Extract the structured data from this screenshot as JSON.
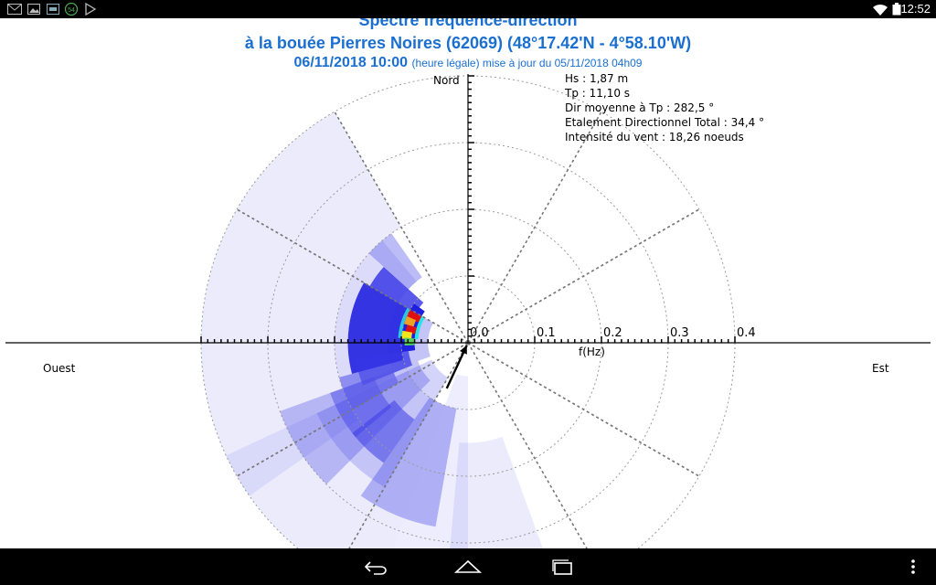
{
  "status_bar": {
    "time": "12:52",
    "notification_icons": [
      "gmail-icon",
      "gallery-icon",
      "app-notification-icon",
      "counter-badge-icon",
      "play-store-icon"
    ],
    "counter_badge": "54",
    "system_icons": [
      "wifi-icon",
      "battery-icon"
    ]
  },
  "header": {
    "title_line1": "Spectre fréquence-direction",
    "title_line2": "à la bouée Pierres Noires (62069) (48°17.42'N - 4°58.10'W)",
    "datetime": "06/11/2018 10:00",
    "datetime_note": "(heure légale) mise à jour du 05/11/2018 04h09"
  },
  "info": {
    "hs": "Hs : 1,87 m",
    "tp": "Tp : 11,10 s",
    "dir_mean": "Dir moyenne à Tp : 282,5 °",
    "spread": "Etalement Directionnel Total : 34,4 °",
    "wind": "Intensité du vent : 18,26 noeuds"
  },
  "compass": {
    "north": "Nord",
    "west": "Ouest",
    "east": "Est"
  },
  "axis": {
    "label": "f(Hz)",
    "ticks": [
      "0.0",
      "0.1",
      "0.2",
      "0.3",
      "0.4"
    ]
  },
  "chart_data": {
    "type": "heatmap",
    "projection": "polar",
    "radial_axis": {
      "label": "f(Hz)",
      "range": [
        0,
        0.4
      ],
      "ticks": [
        0.0,
        0.1,
        0.2,
        0.3,
        0.4
      ]
    },
    "directions": [
      "Nord",
      "Est",
      "Ouest"
    ],
    "colors": {
      "low": "#e9e9fb",
      "mid": "#1f1fe0",
      "cyan": "#25e6e6",
      "green": "#55d455",
      "yellow": "#f2e61e",
      "orange": "#f0a020",
      "peak": "#e01010"
    },
    "cells": [
      {
        "dir_deg": 296,
        "f_from": 0.08,
        "f_to": 0.1,
        "level": 0.95
      },
      {
        "dir_deg": 290,
        "f_from": 0.085,
        "f_to": 0.1,
        "level": 0.85
      },
      {
        "dir_deg": 283,
        "f_from": 0.08,
        "f_to": 0.095,
        "level": 1.0
      },
      {
        "dir_deg": 277,
        "f_from": 0.085,
        "f_to": 0.1,
        "level": 0.75
      },
      {
        "dir_deg": 271,
        "f_from": 0.08,
        "f_to": 0.095,
        "level": 0.6
      }
    ],
    "wind_arrow": {
      "from_deg": 205
    },
    "wind_speed_knots": 18.26,
    "hs_m": 1.87,
    "tp_s": 11.1,
    "mean_direction_deg": 282.5,
    "spread_deg": 34.4
  }
}
